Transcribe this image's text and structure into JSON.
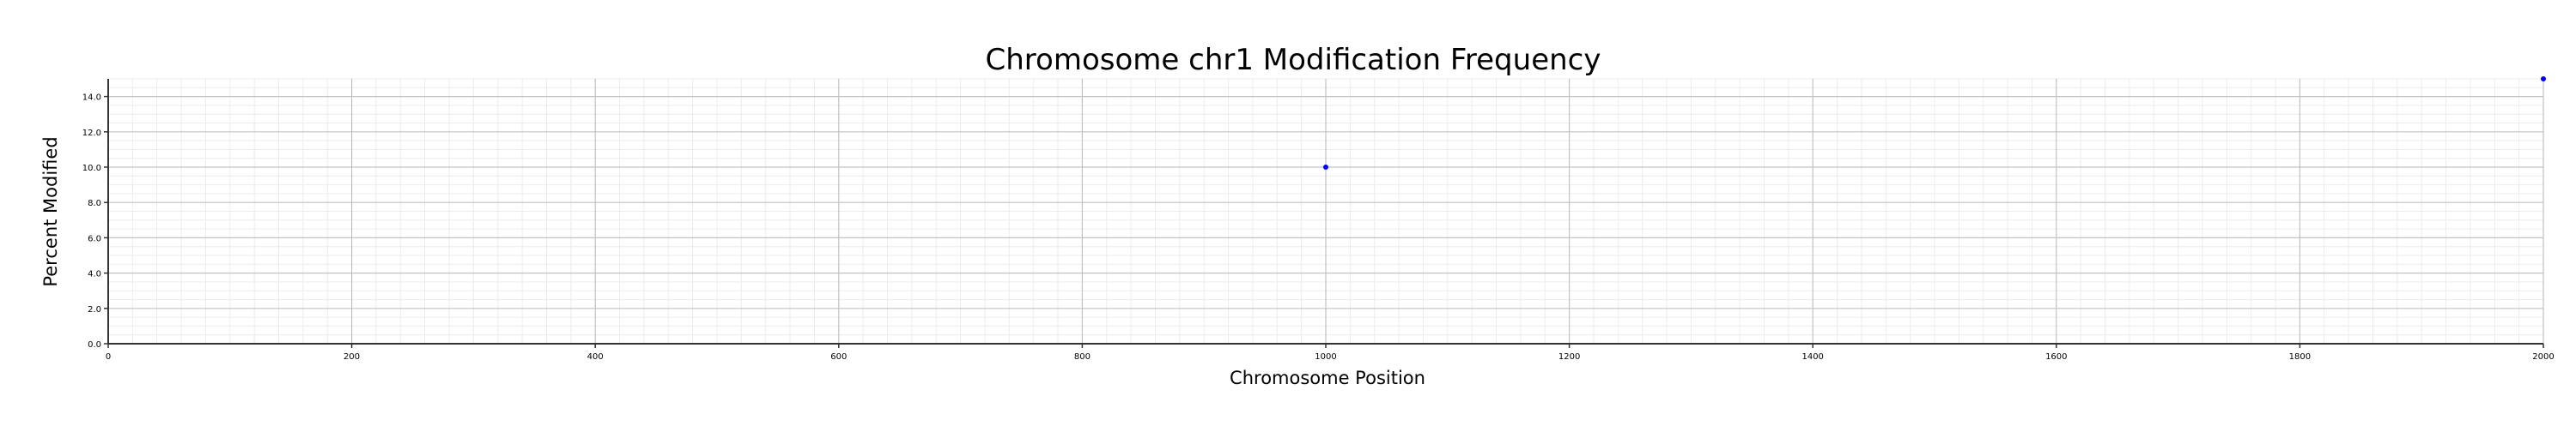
{
  "chart_data": {
    "type": "scatter",
    "title": "Chromosome chr1 Modification Frequency",
    "xlabel": "Chromosome Position",
    "ylabel": "Percent Modified",
    "xlim": [
      0,
      2000
    ],
    "ylim": [
      0,
      15
    ],
    "x_ticks": [
      0,
      200,
      400,
      600,
      800,
      1000,
      1200,
      1400,
      1600,
      1800,
      2000
    ],
    "x_tick_labels": [
      "0",
      "200",
      "400",
      "600",
      "800",
      "1000",
      "1200",
      "1400",
      "1600",
      "1800",
      "2000"
    ],
    "y_ticks": [
      0,
      2,
      4,
      6,
      8,
      10,
      12,
      14
    ],
    "y_tick_labels": [
      "0.0",
      "2.0",
      "4.0",
      "6.0",
      "8.0",
      "10.0",
      "12.0",
      "14.0"
    ],
    "grid": true,
    "series": [
      {
        "color": "#0000ff",
        "points": [
          {
            "x": 1000,
            "y": 10
          },
          {
            "x": 2000,
            "y": 15
          }
        ]
      }
    ]
  }
}
